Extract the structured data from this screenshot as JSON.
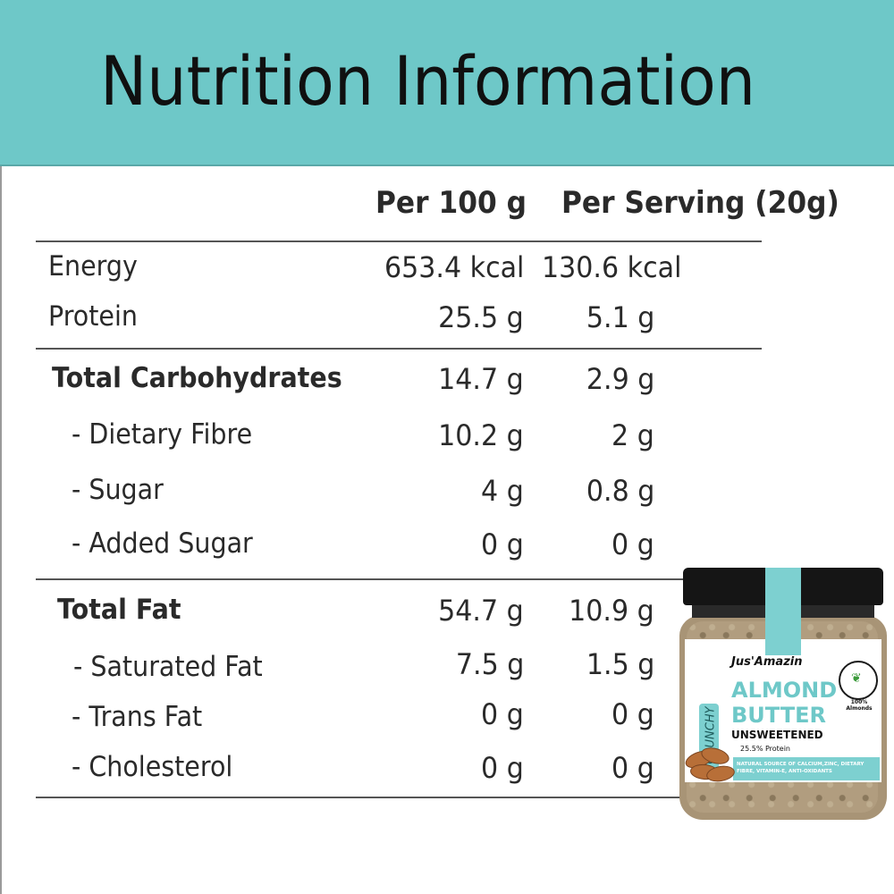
{
  "title": "Nutrition Information",
  "columns": {
    "per100": "Per 100 g",
    "perServing": "Per Serving (20g)"
  },
  "rows": [
    {
      "label": "Energy",
      "per100": "653.4 kcal",
      "perServing": "130.6 kcal"
    },
    {
      "label": "Protein",
      "per100": "25.5 g",
      "perServing": "5.1 g"
    },
    {
      "label": "Total Carbohydrates",
      "per100": "14.7 g",
      "perServing": "2.9 g"
    },
    {
      "label": "- Dietary Fibre",
      "per100": "10.2 g",
      "perServing": "2 g"
    },
    {
      "label": "- Sugar",
      "per100": "4 g",
      "perServing": "0.8 g"
    },
    {
      "label": "- Added Sugar",
      "per100": "0 g",
      "perServing": "0 g"
    },
    {
      "label": "Total Fat",
      "per100": "54.7 g",
      "perServing": "10.9 g"
    },
    {
      "label": "- Saturated Fat",
      "per100": "7.5 g",
      "perServing": "1.5 g"
    },
    {
      "label": "- Trans Fat",
      "per100": "0 g",
      "perServing": "0 g"
    },
    {
      "label": "- Cholesterol",
      "per100": "0 g",
      "perServing": "0 g"
    }
  ],
  "product": {
    "brand": "Jus'Amazin",
    "variant": "CRUNCHY",
    "name_line1": "ALMOND",
    "name_line2": "BUTTER",
    "subtitle": "UNSWEETENED",
    "protein_claim": "25.5% Protein",
    "badge": "100% Almonds",
    "stripe_text": "NATURAL SOURCE OF CALCIUM,ZINC, DIETARY FIBRE, VITAMIN-E, ANTI-OXIDANTS"
  },
  "colors": {
    "header": "#6ec8c8",
    "accent": "#7dd0d0",
    "text": "#2a2a2a"
  }
}
